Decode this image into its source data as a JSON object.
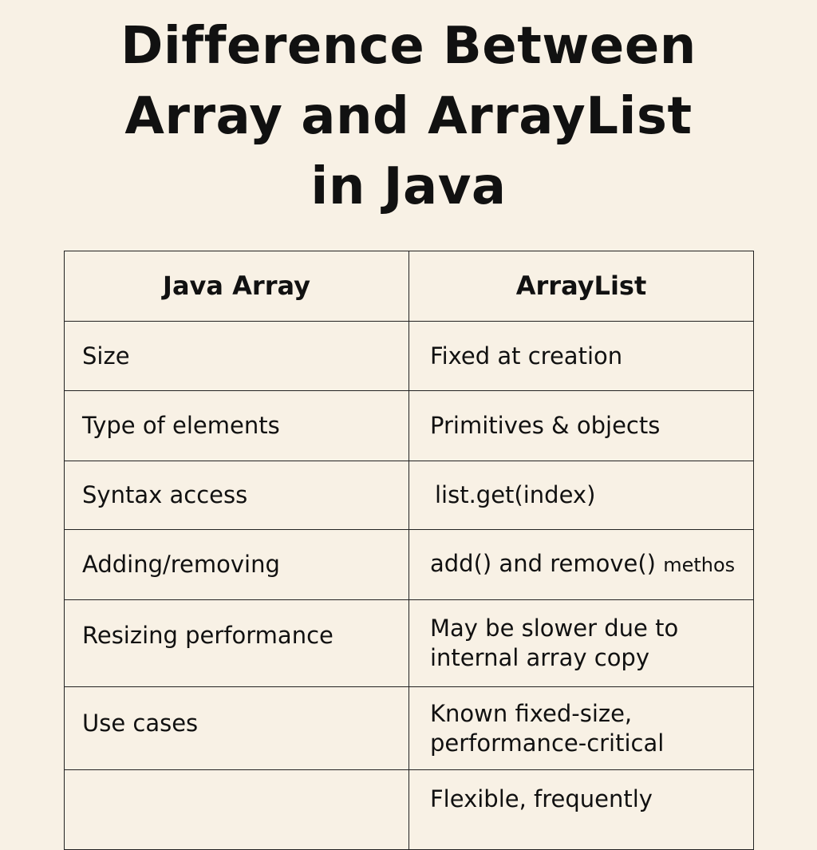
{
  "title_lines": [
    "Difference Between",
    "Array and ArrayList",
    "in Java"
  ],
  "table": {
    "headers": [
      "Java Array",
      "ArrayList"
    ],
    "rows": [
      {
        "label": "Size",
        "value": "Fixed at creation",
        "value_suffix": ""
      },
      {
        "label": "Type of elements",
        "value": "Primitives & objects",
        "value_suffix": ""
      },
      {
        "label": "Syntax access",
        "value": "list.get(index)",
        "value_suffix": ""
      },
      {
        "label": "Adding/removing",
        "value": "add() and remove()",
        "value_suffix": "methos"
      },
      {
        "label": "Resizing performance",
        "value": "May be slower due to internal array copy",
        "value_suffix": ""
      },
      {
        "label": "Use cases",
        "value": "Known fixed-size, performance-critical",
        "value_suffix": ""
      },
      {
        "label": "",
        "value": "Flexible, frequently",
        "value_suffix": ""
      }
    ]
  }
}
